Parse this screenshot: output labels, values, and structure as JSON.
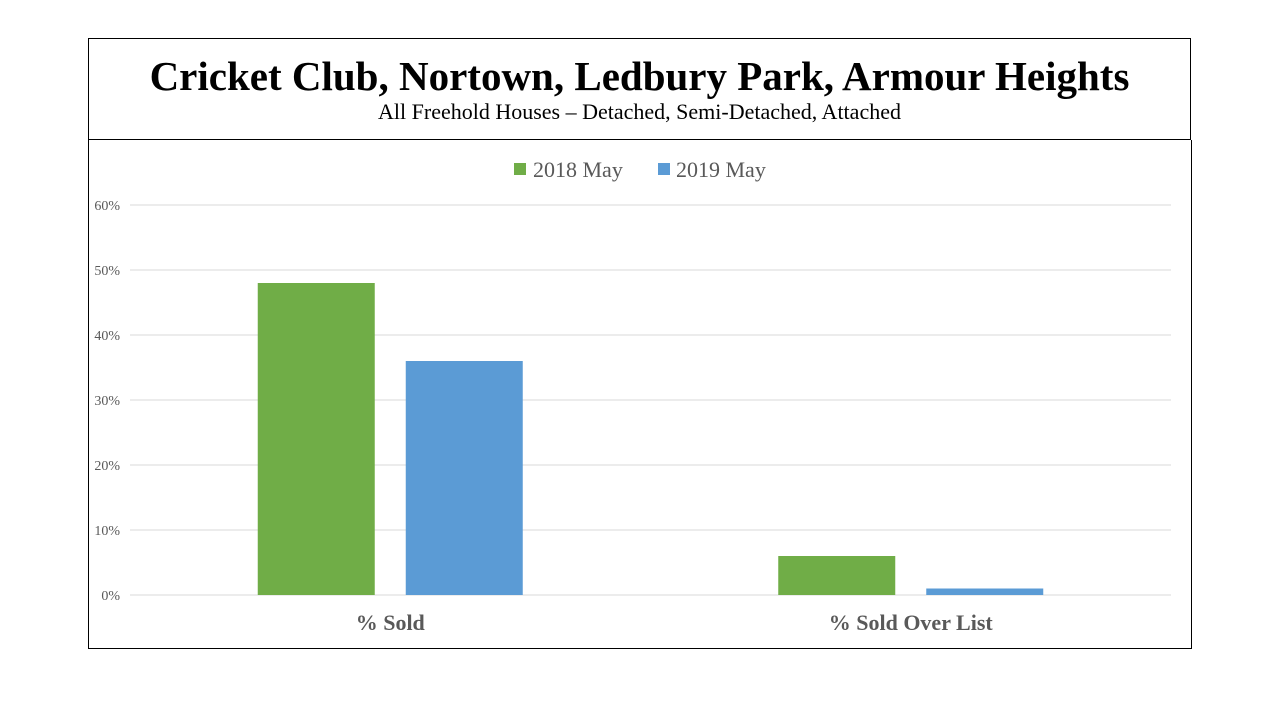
{
  "header": {
    "title": "Cricket Club, Nortown, Ledbury Park, Armour Heights",
    "subtitle": "All Freehold Houses – Detached, Semi-Detached, Attached"
  },
  "colors": {
    "series_2018": "#70ad47",
    "series_2019": "#5b9bd5",
    "gridline": "#d9d9d9",
    "text": "#595959"
  },
  "chart_data": {
    "type": "bar",
    "title": "Cricket Club, Nortown, Ledbury Park, Armour Heights",
    "subtitle": "All Freehold Houses – Detached, Semi-Detached, Attached",
    "categories": [
      "% Sold",
      "% Sold Over List"
    ],
    "series": [
      {
        "name": "2018 May",
        "values": [
          48,
          6
        ]
      },
      {
        "name": "2019 May",
        "values": [
          36,
          1
        ]
      }
    ],
    "ylim": [
      0,
      60
    ],
    "yticks": [
      0,
      10,
      20,
      30,
      40,
      50,
      60
    ],
    "ytick_labels": [
      "0%",
      "10%",
      "20%",
      "30%",
      "40%",
      "50%",
      "60%"
    ],
    "grid": true,
    "legend_position": "top-center",
    "xlabel": "",
    "ylabel": ""
  }
}
